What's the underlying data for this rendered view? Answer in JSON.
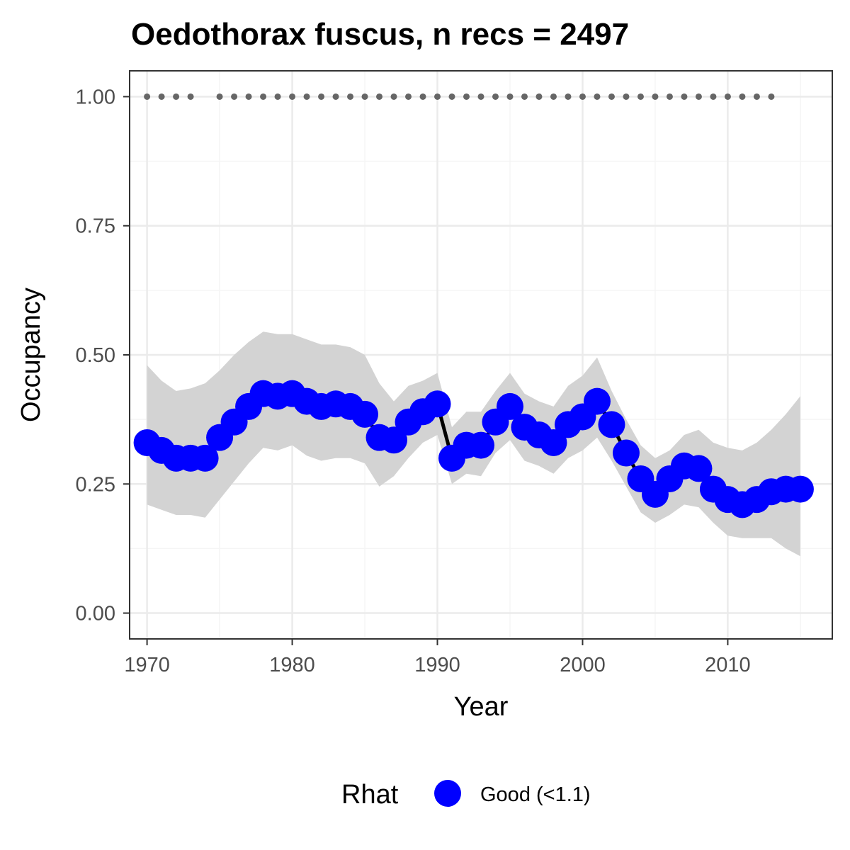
{
  "chart_data": {
    "type": "line",
    "title": "Oedothorax fuscus, n recs = 2497",
    "xlabel": "Year",
    "ylabel": "Occupancy",
    "xlim": [
      1968.8,
      2017.2
    ],
    "ylim": [
      -0.05,
      1.05
    ],
    "x_ticks": [
      1970,
      1980,
      1990,
      2000,
      2010
    ],
    "x_tick_labels": [
      "1970",
      "1980",
      "1990",
      "2000",
      "2010"
    ],
    "y_ticks": [
      0,
      0.25,
      0.5,
      0.75,
      1.0
    ],
    "y_tick_labels": [
      "0.00",
      "0.25",
      "0.50",
      "0.75",
      "1.00"
    ],
    "grid": true,
    "x": [
      1970,
      1971,
      1972,
      1973,
      1974,
      1975,
      1976,
      1977,
      1978,
      1979,
      1980,
      1981,
      1982,
      1983,
      1984,
      1985,
      1986,
      1987,
      1988,
      1989,
      1990,
      1991,
      1992,
      1993,
      1994,
      1995,
      1996,
      1997,
      1998,
      1999,
      2000,
      2001,
      2002,
      2003,
      2004,
      2005,
      2006,
      2007,
      2008,
      2009,
      2010,
      2011,
      2012,
      2013,
      2014,
      2015
    ],
    "occupancy": [
      0.33,
      0.315,
      0.3,
      0.3,
      0.3,
      0.34,
      0.37,
      0.4,
      0.425,
      0.42,
      0.425,
      0.41,
      0.4,
      0.405,
      0.4,
      0.385,
      0.34,
      0.335,
      0.37,
      0.39,
      0.405,
      0.3,
      0.325,
      0.325,
      0.37,
      0.4,
      0.36,
      0.345,
      0.33,
      0.365,
      0.38,
      0.41,
      0.365,
      0.31,
      0.26,
      0.23,
      0.26,
      0.285,
      0.28,
      0.24,
      0.22,
      0.21,
      0.22,
      0.235,
      0.24,
      0.24
    ],
    "lower": [
      0.21,
      0.2,
      0.19,
      0.19,
      0.185,
      0.22,
      0.255,
      0.29,
      0.32,
      0.315,
      0.325,
      0.305,
      0.295,
      0.3,
      0.3,
      0.29,
      0.245,
      0.265,
      0.3,
      0.33,
      0.345,
      0.25,
      0.27,
      0.265,
      0.31,
      0.335,
      0.295,
      0.285,
      0.27,
      0.3,
      0.315,
      0.34,
      0.295,
      0.245,
      0.195,
      0.175,
      0.19,
      0.21,
      0.205,
      0.175,
      0.15,
      0.145,
      0.145,
      0.145,
      0.125,
      0.11
    ],
    "upper": [
      0.48,
      0.45,
      0.43,
      0.435,
      0.445,
      0.47,
      0.5,
      0.525,
      0.545,
      0.54,
      0.54,
      0.53,
      0.52,
      0.52,
      0.515,
      0.5,
      0.445,
      0.41,
      0.44,
      0.45,
      0.465,
      0.36,
      0.39,
      0.39,
      0.43,
      0.465,
      0.425,
      0.41,
      0.4,
      0.44,
      0.46,
      0.495,
      0.43,
      0.375,
      0.325,
      0.3,
      0.315,
      0.345,
      0.355,
      0.33,
      0.32,
      0.315,
      0.33,
      0.355,
      0.385,
      0.42
    ],
    "recorded_years_y": 1.0,
    "recorded_years": [
      1970,
      1971,
      1972,
      1973,
      1975,
      1976,
      1977,
      1978,
      1979,
      1980,
      1981,
      1982,
      1983,
      1984,
      1985,
      1986,
      1987,
      1988,
      1989,
      1990,
      1991,
      1992,
      1993,
      1994,
      1995,
      1996,
      1997,
      1998,
      1999,
      2000,
      2001,
      2002,
      2003,
      2004,
      2005,
      2006,
      2007,
      2008,
      2009,
      2010,
      2011,
      2012,
      2013
    ],
    "legend": {
      "title": "Rhat",
      "placement": "bottom",
      "entries": [
        {
          "label": "Good (<1.1)",
          "color": "#0000ff"
        }
      ]
    },
    "colors": {
      "points": "#0000ff",
      "line": "#000000",
      "ribbon": "#d3d3d3",
      "recorded_dots": "#666666",
      "grid_major": "#ebebeb",
      "grid_minor": "#f5f5f5",
      "panel_border": "#333333"
    }
  }
}
